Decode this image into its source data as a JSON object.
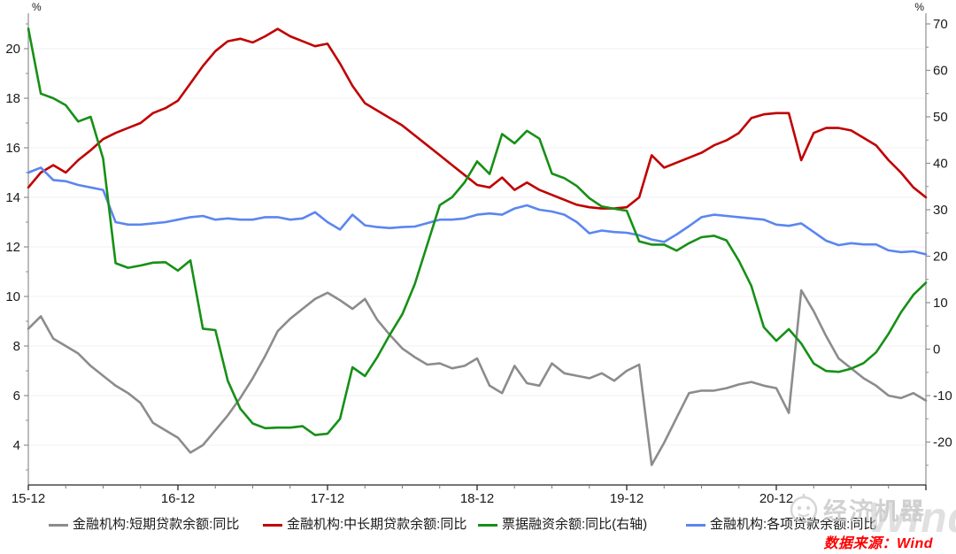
{
  "footer": {
    "source_label": "数据来源：Wind",
    "color": "#ff0000"
  },
  "watermark": {
    "brand": "经济机器",
    "wind_text": "Wind",
    "color": "#c9c9c9"
  },
  "chart_data": {
    "type": "line",
    "title": "",
    "grid": "horizontal-faint",
    "legend_position": "bottom",
    "left_axis": {
      "unit": "%",
      "min": 4,
      "max": 20,
      "ticks": [
        20,
        18,
        16,
        14,
        12,
        10,
        8,
        6,
        4
      ]
    },
    "right_axis": {
      "unit": "%",
      "min": -20,
      "max": 70,
      "ticks": [
        70,
        60,
        50,
        40,
        30,
        20,
        10,
        0,
        -10,
        -20
      ]
    },
    "x_tick_labels": [
      "15-12",
      "16-12",
      "17-12",
      "18-12",
      "19-12",
      "20-12"
    ],
    "categories": [
      "15-12",
      "16-01",
      "16-02",
      "16-03",
      "16-04",
      "16-05",
      "16-06",
      "16-07",
      "16-08",
      "16-09",
      "16-10",
      "16-11",
      "16-12",
      "17-01",
      "17-02",
      "17-03",
      "17-04",
      "17-05",
      "17-06",
      "17-07",
      "17-08",
      "17-09",
      "17-10",
      "17-11",
      "17-12",
      "18-01",
      "18-02",
      "18-03",
      "18-04",
      "18-05",
      "18-06",
      "18-07",
      "18-08",
      "18-09",
      "18-10",
      "18-11",
      "18-12",
      "19-01",
      "19-02",
      "19-03",
      "19-04",
      "19-05",
      "19-06",
      "19-07",
      "19-08",
      "19-09",
      "19-10",
      "19-11",
      "19-12",
      "20-01",
      "20-02",
      "20-03",
      "20-04",
      "20-05",
      "20-06",
      "20-07",
      "20-08",
      "20-09",
      "20-10",
      "20-11",
      "20-12",
      "21-01",
      "21-02",
      "21-03",
      "21-04",
      "21-05",
      "21-06",
      "21-07",
      "21-08",
      "21-09",
      "21-10",
      "21-11",
      "21-12"
    ],
    "series": [
      {
        "name": "金融机构:短期贷款余额:同比",
        "color": "#8c8c8c",
        "axis": "left",
        "values": [
          8.7,
          9.2,
          8.3,
          8.0,
          7.7,
          7.2,
          6.8,
          6.4,
          6.1,
          5.7,
          4.9,
          4.6,
          4.3,
          3.7,
          4.0,
          4.6,
          5.2,
          5.9,
          6.7,
          7.6,
          8.6,
          9.1,
          9.5,
          9.9,
          10.15,
          9.85,
          9.5,
          9.9,
          9.05,
          8.45,
          7.9,
          7.55,
          7.25,
          7.3,
          7.1,
          7.2,
          7.5,
          6.4,
          6.1,
          7.2,
          6.5,
          6.4,
          7.3,
          6.9,
          6.8,
          6.7,
          6.9,
          6.6,
          7.0,
          7.25,
          3.2,
          4.1,
          5.1,
          6.1,
          6.2,
          6.2,
          6.3,
          6.45,
          6.55,
          6.4,
          6.3,
          5.3,
          10.25,
          9.4,
          8.4,
          7.5,
          7.1,
          6.7,
          6.4,
          6.0,
          5.9,
          6.1,
          5.8
        ]
      },
      {
        "name": "金融机构:中长期贷款余额:同比",
        "color": "#c00000",
        "axis": "left",
        "values": [
          14.4,
          15.0,
          15.3,
          15.0,
          15.5,
          15.9,
          16.35,
          16.6,
          16.8,
          17.0,
          17.4,
          17.6,
          17.9,
          18.6,
          19.3,
          19.9,
          20.3,
          20.4,
          20.25,
          20.5,
          20.8,
          20.5,
          20.3,
          20.1,
          20.2,
          19.4,
          18.5,
          17.8,
          17.5,
          17.2,
          16.9,
          16.5,
          16.1,
          15.7,
          15.3,
          14.9,
          14.5,
          14.4,
          14.8,
          14.3,
          14.6,
          14.3,
          14.1,
          13.9,
          13.7,
          13.6,
          13.55,
          13.55,
          13.6,
          14.0,
          15.7,
          15.2,
          15.4,
          15.6,
          15.8,
          16.1,
          16.3,
          16.6,
          17.2,
          17.35,
          17.4,
          17.4,
          15.5,
          16.6,
          16.8,
          16.8,
          16.7,
          16.4,
          16.1,
          15.5,
          15.0,
          14.4,
          14.0
        ]
      },
      {
        "name": "票据融资余额:同比(右轴)",
        "color": "#169016",
        "axis": "right",
        "values": [
          69,
          55,
          54,
          52.5,
          49,
          50,
          41,
          18.5,
          17.5,
          18.0,
          18.6,
          18.7,
          16.9,
          19.1,
          4.4,
          4.1,
          -6.8,
          -12.8,
          -16.0,
          -17.0,
          -16.9,
          -16.9,
          -16.6,
          -18.5,
          -18.2,
          -15.0,
          -3.9,
          -5.8,
          -1.7,
          3.1,
          7.5,
          14.0,
          22.5,
          31.0,
          32.7,
          35.9,
          40.4,
          37.7,
          46.3,
          44.3,
          47.0,
          45.3,
          37.8,
          36.8,
          35.1,
          32.5,
          30.7,
          30.2,
          29.8,
          23.2,
          22.5,
          22.5,
          21.2,
          22.8,
          24.1,
          24.4,
          23.4,
          19.0,
          13.6,
          4.7,
          1.8,
          4.3,
          1.2,
          -3.1,
          -4.7,
          -4.9,
          -4.2,
          -3.0,
          -0.7,
          3.3,
          7.9,
          11.7,
          14.3
        ]
      },
      {
        "name": "金融机构:各项贷款余额:同比",
        "color": "#5b86f0",
        "axis": "left",
        "values": [
          15.0,
          15.2,
          14.7,
          14.65,
          14.5,
          14.4,
          14.3,
          13.0,
          12.9,
          12.9,
          12.95,
          13.0,
          13.1,
          13.2,
          13.25,
          13.1,
          13.15,
          13.1,
          13.1,
          13.2,
          13.2,
          13.1,
          13.15,
          13.4,
          13.0,
          12.7,
          13.3,
          12.87,
          12.8,
          12.76,
          12.8,
          12.82,
          12.96,
          13.1,
          13.1,
          13.15,
          13.3,
          13.35,
          13.3,
          13.55,
          13.68,
          13.5,
          13.43,
          13.3,
          13.0,
          12.55,
          12.66,
          12.6,
          12.57,
          12.47,
          12.3,
          12.2,
          12.5,
          12.84,
          13.2,
          13.3,
          13.25,
          13.2,
          13.15,
          13.1,
          12.9,
          12.85,
          12.95,
          12.6,
          12.25,
          12.07,
          12.15,
          12.1,
          12.1,
          11.86,
          11.79,
          11.82,
          11.7
        ]
      }
    ]
  }
}
